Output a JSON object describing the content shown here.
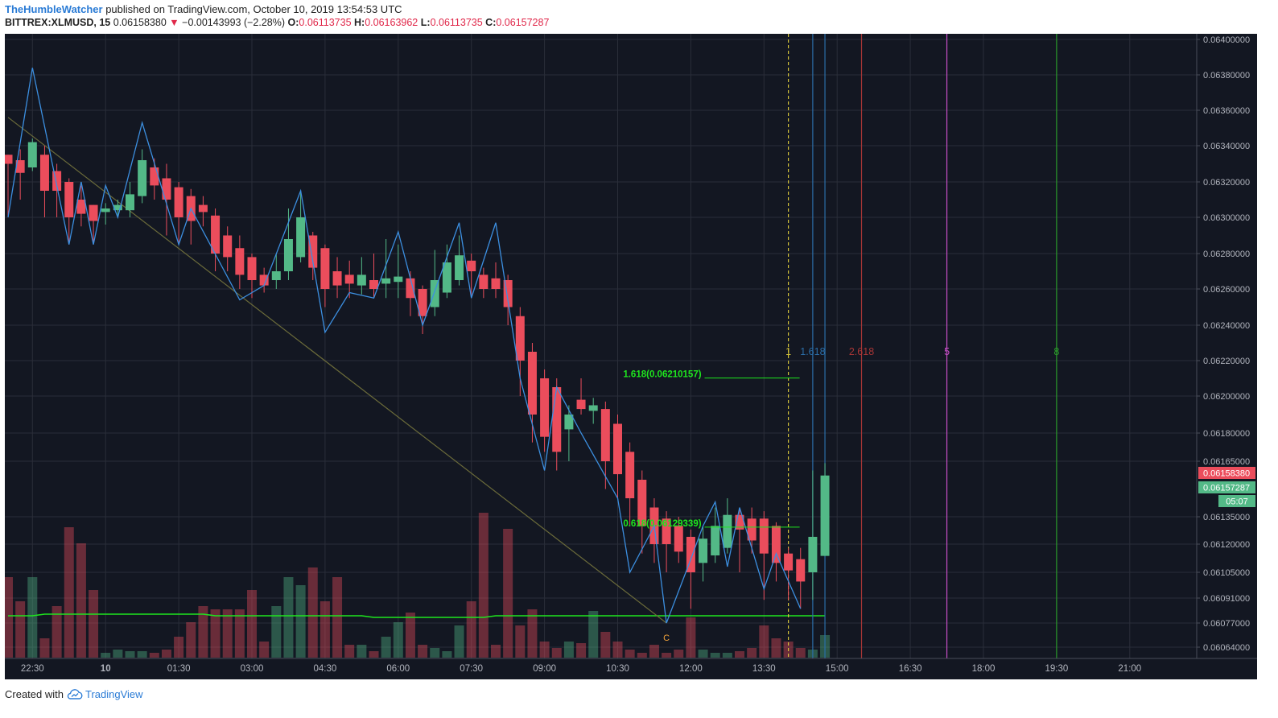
{
  "header": {
    "author": "TheHumbleWatcher",
    "published_text": " published on TradingView.com, October 10, 2019 13:54:53 UTC",
    "symbol": "BITTREX:XLMUSD, 15",
    "last_price": "0.06158380",
    "change": "−0.00143993 (−2.28%)",
    "open_label": "O:",
    "open": "0.06113735",
    "high_label": "H:",
    "high": "0.06163962",
    "low_label": "L:",
    "low": "0.06113735",
    "close_label": "C:",
    "close": "0.06157287",
    "down_arrow": "▼"
  },
  "footer": {
    "created_with": "Created with",
    "brand": "TradingView"
  },
  "colors": {
    "background": "#131722",
    "grid": "#2a2e39",
    "up": "#53b987",
    "down": "#eb4d5c",
    "zigzag": "#3c8fe0",
    "trendline": "#6b6b3a",
    "volume_ma": "#1ee61e",
    "fib_label": "#1ee61e",
    "fib_time_1": "#d4c33a",
    "fib_time_1618": "#2b6ea8",
    "fib_time_2618": "#a83636",
    "fib_time_5": "#c64ec6",
    "fib_time_8": "#2a9a2a"
  },
  "chart_data": {
    "type": "candlestick",
    "title": "BITTREX:XLMUSD, 15",
    "ylim": [
      0.06054,
      0.064
    ],
    "x_tick_labels": [
      "22:30",
      "10",
      "01:30",
      "03:00",
      "04:30",
      "06:00",
      "07:30",
      "09:00",
      "10:30",
      "12:00",
      "13:30",
      "15:00",
      "16:30",
      "18:00",
      "19:30",
      "21:00"
    ],
    "y_tick_labels": [
      "0.06400000",
      "0.06380000",
      "0.06360000",
      "0.06340000",
      "0.06320000",
      "0.06300000",
      "0.06280000",
      "0.06260000",
      "0.06240000",
      "0.06220000",
      "0.06200000",
      "0.06180000",
      "0.06165000",
      "0.06135000",
      "0.06120000",
      "0.06105000",
      "0.06091000",
      "0.06077000",
      "0.06064000"
    ],
    "y_tick_values": [
      0.064,
      0.0638,
      0.0636,
      0.0634,
      0.0632,
      0.063,
      0.0628,
      0.0626,
      0.0624,
      0.0622,
      0.062,
      0.0618,
      0.06165,
      0.06135,
      0.0612,
      0.06105,
      0.06091,
      0.06077,
      0.06064
    ],
    "price_tags": [
      {
        "label": "0.06158380",
        "value": 0.0615838,
        "color": "#eb4d5c"
      },
      {
        "label": "0.06157287",
        "value": 0.0615729,
        "color": "#53b987"
      },
      {
        "label": "05:07",
        "value": 0.0614,
        "color": "#53b987"
      }
    ],
    "candles": [
      [
        0.06335,
        0.06335,
        0.063,
        0.0633
      ],
      [
        0.06332,
        0.06338,
        0.0631,
        0.06325
      ],
      [
        0.06328,
        0.06344,
        0.06326,
        0.06342
      ],
      [
        0.06335,
        0.0634,
        0.063,
        0.06315
      ],
      [
        0.06326,
        0.0633,
        0.063,
        0.06315
      ],
      [
        0.0632,
        0.06322,
        0.06285,
        0.063
      ],
      [
        0.0631,
        0.06318,
        0.06295,
        0.06302
      ],
      [
        0.06307,
        0.06307,
        0.06285,
        0.06298
      ],
      [
        0.06303,
        0.06308,
        0.06296,
        0.06305
      ],
      [
        0.06304,
        0.0631,
        0.063,
        0.06307
      ],
      [
        0.06304,
        0.0632,
        0.063,
        0.06313
      ],
      [
        0.06312,
        0.06338,
        0.06308,
        0.06332
      ],
      [
        0.06328,
        0.06333,
        0.0631,
        0.06318
      ],
      [
        0.06322,
        0.0633,
        0.0629,
        0.0631
      ],
      [
        0.06317,
        0.0632,
        0.06285,
        0.063
      ],
      [
        0.06312,
        0.06316,
        0.06285,
        0.06298
      ],
      [
        0.06307,
        0.06312,
        0.06295,
        0.06303
      ],
      [
        0.06301,
        0.06305,
        0.0627,
        0.0628
      ],
      [
        0.0629,
        0.06295,
        0.0627,
        0.06278
      ],
      [
        0.06283,
        0.0629,
        0.0626,
        0.06268
      ],
      [
        0.06278,
        0.0628,
        0.06255,
        0.06265
      ],
      [
        0.06268,
        0.06272,
        0.06258,
        0.06262
      ],
      [
        0.06265,
        0.0628,
        0.0626,
        0.0627
      ],
      [
        0.0627,
        0.06305,
        0.06265,
        0.06288
      ],
      [
        0.06278,
        0.06315,
        0.06275,
        0.063
      ],
      [
        0.0629,
        0.06292,
        0.06265,
        0.06272
      ],
      [
        0.06283,
        0.06285,
        0.0625,
        0.0626
      ],
      [
        0.0627,
        0.06278,
        0.06255,
        0.06262
      ],
      [
        0.06268,
        0.06276,
        0.06255,
        0.06263
      ],
      [
        0.06262,
        0.06278,
        0.06257,
        0.06268
      ],
      [
        0.06265,
        0.0628,
        0.06255,
        0.0626
      ],
      [
        0.06263,
        0.06288,
        0.06255,
        0.06266
      ],
      [
        0.06264,
        0.06285,
        0.06255,
        0.06267
      ],
      [
        0.06266,
        0.0627,
        0.06245,
        0.06255
      ],
      [
        0.0626,
        0.06262,
        0.06235,
        0.06245
      ],
      [
        0.0625,
        0.06282,
        0.06245,
        0.06265
      ],
      [
        0.06258,
        0.06285,
        0.06255,
        0.06275
      ],
      [
        0.06265,
        0.0629,
        0.06262,
        0.06279
      ],
      [
        0.06276,
        0.0628,
        0.06255,
        0.0627
      ],
      [
        0.06268,
        0.06272,
        0.06255,
        0.0626
      ],
      [
        0.06266,
        0.06275,
        0.06255,
        0.0626
      ],
      [
        0.06265,
        0.06268,
        0.0624,
        0.0625
      ],
      [
        0.06245,
        0.0625,
        0.062,
        0.0622
      ],
      [
        0.06225,
        0.0623,
        0.06175,
        0.0619
      ],
      [
        0.0621,
        0.06215,
        0.0617,
        0.06178
      ],
      [
        0.06205,
        0.0621,
        0.0616,
        0.0617
      ],
      [
        0.06182,
        0.06195,
        0.06165,
        0.0619
      ],
      [
        0.06198,
        0.0621,
        0.0619,
        0.06193
      ],
      [
        0.06192,
        0.06199,
        0.06185,
        0.06195
      ],
      [
        0.06193,
        0.06197,
        0.0615,
        0.06165
      ],
      [
        0.06185,
        0.0619,
        0.06145,
        0.06158
      ],
      [
        0.0617,
        0.06175,
        0.0613,
        0.06145
      ],
      [
        0.06155,
        0.0616,
        0.06115,
        0.0613
      ],
      [
        0.0614,
        0.06145,
        0.0611,
        0.0612
      ],
      [
        0.06134,
        0.06138,
        0.06105,
        0.0612
      ],
      [
        0.0613,
        0.06135,
        0.0611,
        0.06116
      ],
      [
        0.06124,
        0.06128,
        0.06085,
        0.06105
      ],
      [
        0.0611,
        0.0613,
        0.061,
        0.06123
      ],
      [
        0.06114,
        0.0614,
        0.0611,
        0.0613
      ],
      [
        0.06118,
        0.06145,
        0.06115,
        0.06136
      ],
      [
        0.06136,
        0.0614,
        0.06105,
        0.06128
      ],
      [
        0.06134,
        0.0614,
        0.06115,
        0.06122
      ],
      [
        0.06134,
        0.06138,
        0.0609,
        0.06115
      ],
      [
        0.0613,
        0.06132,
        0.061,
        0.0611
      ],
      [
        0.06115,
        0.06118,
        0.0609,
        0.06106
      ],
      [
        0.06112,
        0.06118,
        0.06085,
        0.061
      ],
      [
        0.06105,
        0.0616,
        0.0609,
        0.06124
      ],
      [
        0.06113735,
        0.06163962,
        0.06113735,
        0.06157287
      ]
    ],
    "volumes": [
      50,
      35,
      50,
      12,
      32,
      81,
      71,
      42,
      3,
      5,
      4,
      4,
      3,
      5,
      13,
      22,
      32,
      30,
      30,
      30,
      42,
      10,
      32,
      50,
      45,
      56,
      35,
      50,
      8,
      8,
      4,
      13,
      22,
      28,
      8,
      6,
      4,
      20,
      35,
      90,
      8,
      80,
      20,
      30,
      10,
      6,
      10,
      9,
      29,
      16,
      10,
      5,
      3,
      8,
      3,
      5,
      25,
      5,
      3,
      3,
      4,
      6,
      20,
      12,
      10,
      6,
      5,
      14
    ],
    "volume_ma": [
      26,
      26,
      26,
      27,
      27,
      27,
      27,
      27,
      27,
      27,
      27,
      27,
      27,
      27,
      27,
      27,
      27,
      26,
      26,
      26,
      26,
      26,
      26,
      26,
      26,
      26,
      26,
      26,
      26,
      26,
      25,
      25,
      25,
      25,
      25,
      25,
      25,
      25,
      25,
      25,
      26,
      26,
      26,
      26,
      26,
      26,
      26,
      26,
      26,
      26,
      26,
      26,
      26,
      26,
      26,
      26,
      26,
      26,
      26,
      26,
      26,
      26,
      26,
      26,
      26,
      26,
      26,
      26
    ],
    "zigzag": [
      [
        0,
        0.063
      ],
      [
        2,
        0.06384
      ],
      [
        5,
        0.06285
      ],
      [
        6,
        0.0632
      ],
      [
        7,
        0.06285
      ],
      [
        8,
        0.06318
      ],
      [
        9,
        0.063
      ],
      [
        11,
        0.06353
      ],
      [
        14,
        0.06285
      ],
      [
        15,
        0.06305
      ],
      [
        19,
        0.06254
      ],
      [
        21,
        0.06262
      ],
      [
        24,
        0.06315
      ],
      [
        26,
        0.06236
      ],
      [
        28,
        0.06258
      ],
      [
        30,
        0.06255
      ],
      [
        32,
        0.06292
      ],
      [
        34,
        0.0624
      ],
      [
        37,
        0.06297
      ],
      [
        38,
        0.06255
      ],
      [
        40,
        0.06297
      ],
      [
        42,
        0.0621
      ],
      [
        44,
        0.0616
      ],
      [
        45,
        0.06205
      ],
      [
        47,
        0.0618
      ],
      [
        50,
        0.06145
      ],
      [
        51,
        0.06105
      ],
      [
        53,
        0.0613
      ],
      [
        54,
        0.06077
      ],
      [
        56,
        0.06112
      ],
      [
        57,
        0.0613
      ],
      [
        58,
        0.06143
      ],
      [
        59,
        0.06108
      ],
      [
        60,
        0.0614
      ],
      [
        62,
        0.06096
      ],
      [
        63,
        0.06115
      ],
      [
        65,
        0.06085
      ]
    ],
    "trendline": {
      "from": [
        0,
        0.06356
      ],
      "to": [
        54,
        0.06077
      ]
    },
    "point_label": {
      "text": "C",
      "index": 54,
      "value": 0.06071
    },
    "fib_levels": [
      {
        "label": "1.618(0.06210157)",
        "value": 0.06210157,
        "from_index": 57,
        "to_index": 64
      },
      {
        "label": "0.618(0.06129339)",
        "value": 0.06129339,
        "from_index": 57,
        "to_index": 64
      }
    ],
    "fib_time_zones": [
      {
        "label": "1",
        "time": "14:00",
        "color": "#d4c33a",
        "dashed": true
      },
      {
        "label": "1.618",
        "time": "14:30",
        "color": "#2b6ea8",
        "dashed": false
      },
      {
        "label": "",
        "time": "14:45",
        "color": "#2b6ea8",
        "dashed": false
      },
      {
        "label": "2.618",
        "time": "15:30",
        "color": "#a83636",
        "dashed": false
      },
      {
        "label": "5",
        "time": "17:15",
        "color": "#c64ec6",
        "dashed": false
      },
      {
        "label": "8",
        "time": "19:30",
        "color": "#2a9a2a",
        "dashed": false
      }
    ],
    "fib_time_level": 0.06225
  }
}
